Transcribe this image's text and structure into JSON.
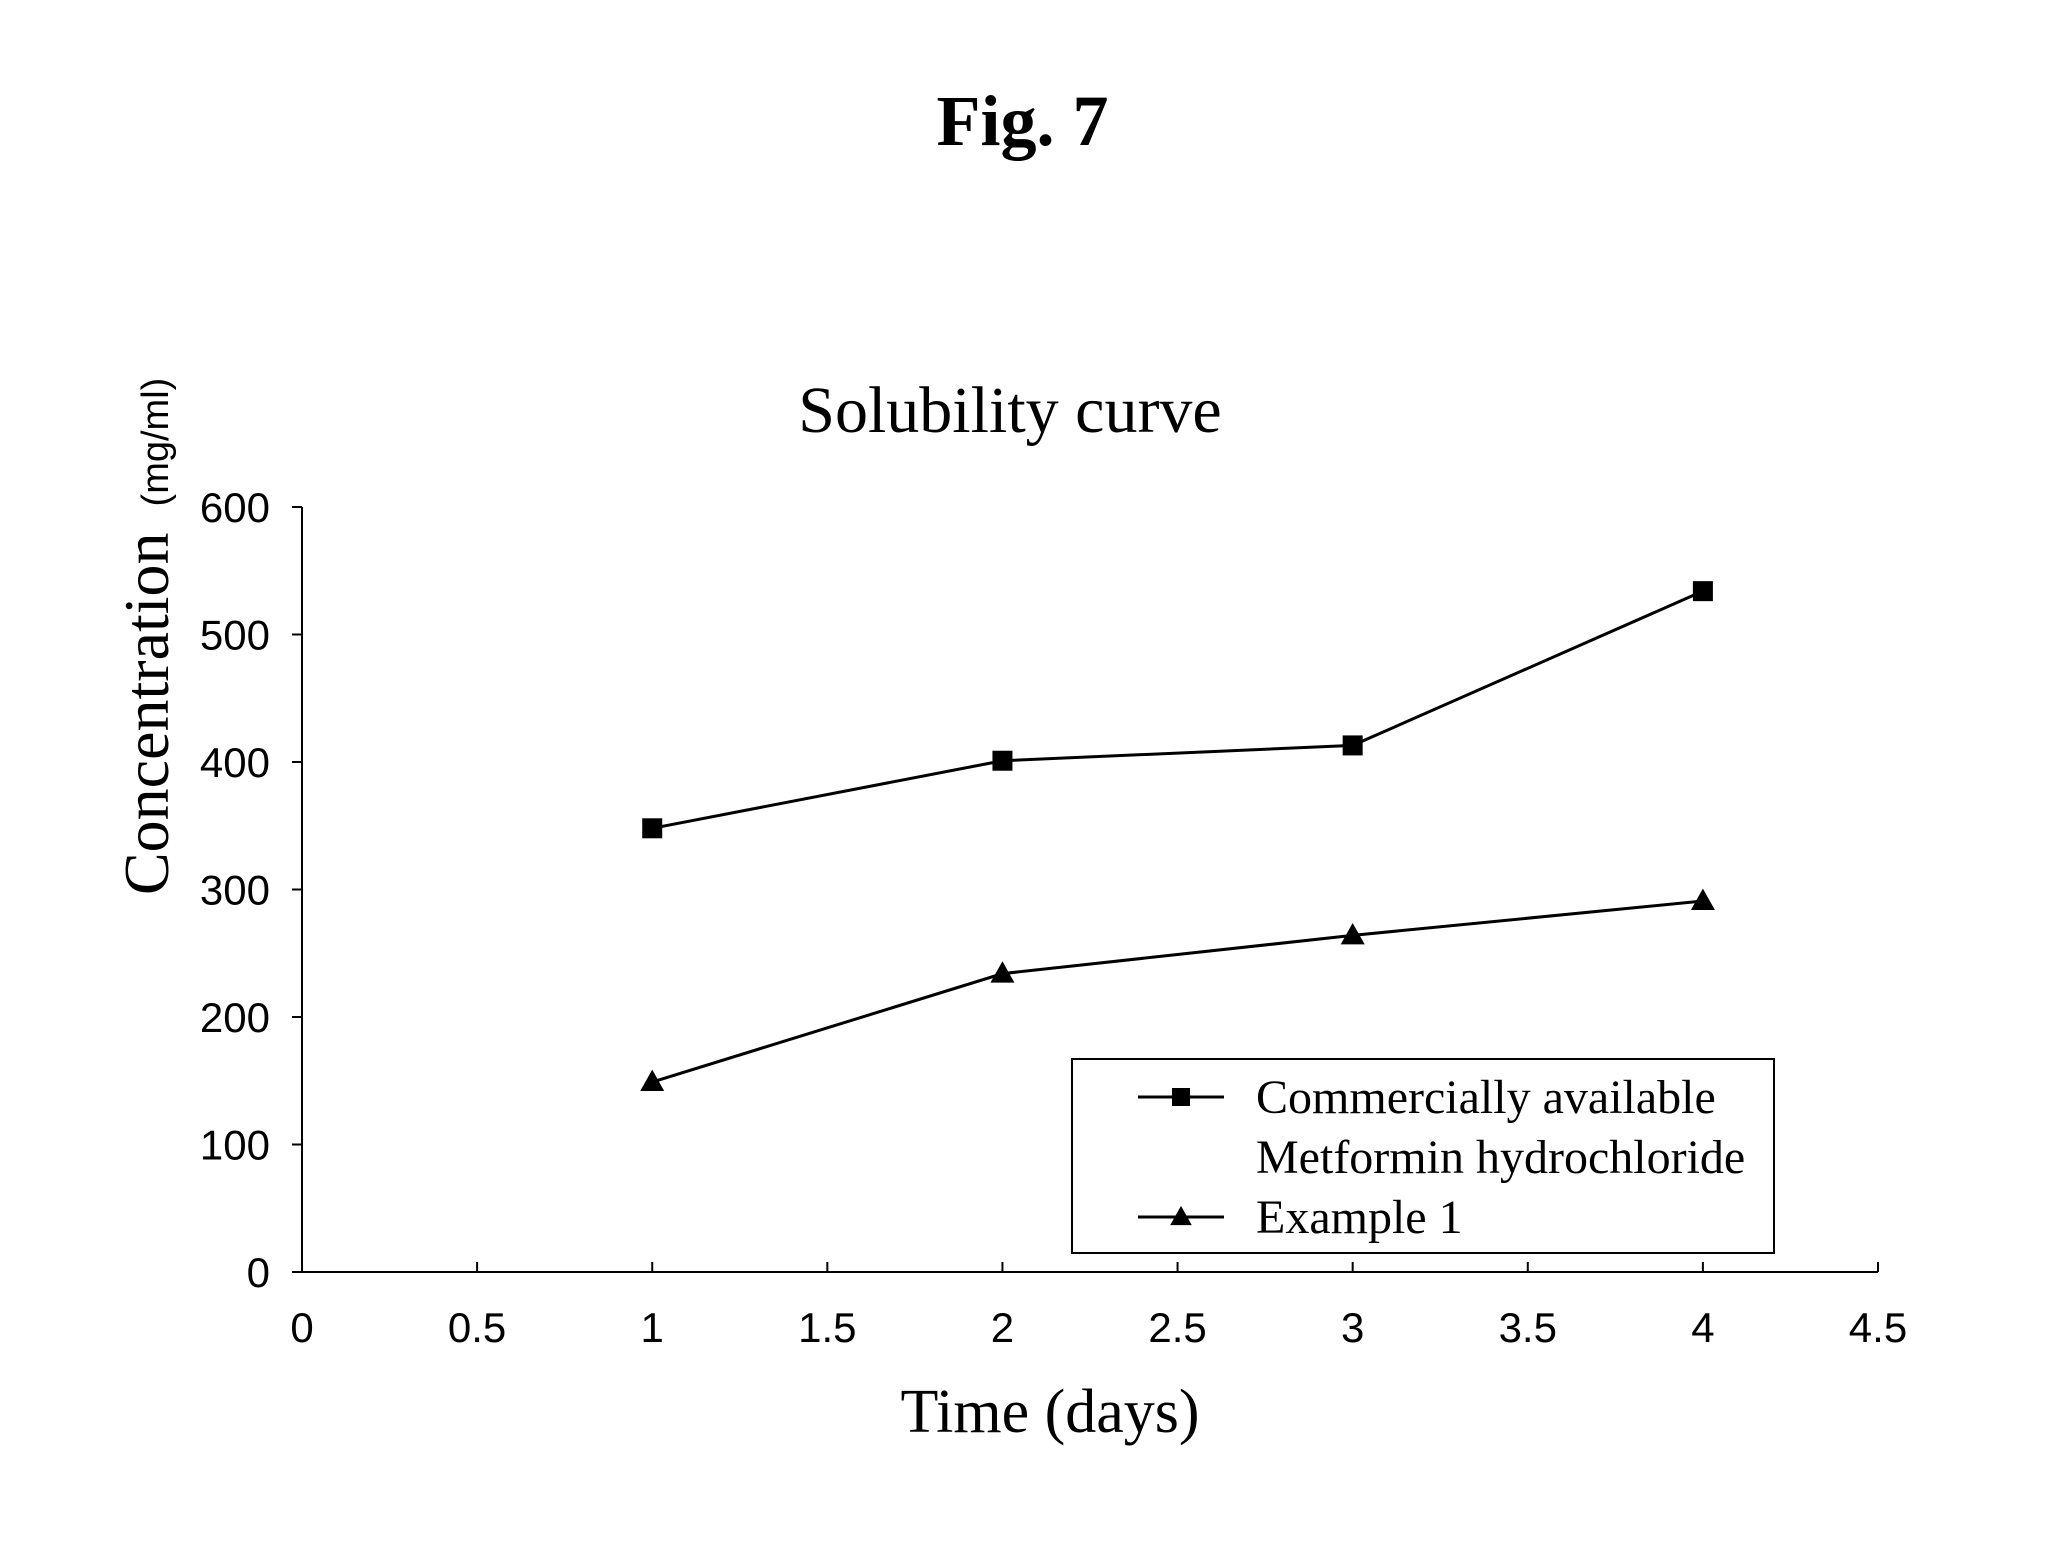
{
  "figure": {
    "label": "Fig. 7"
  },
  "chart_data": {
    "type": "line",
    "title": "Solubility curve",
    "xlabel": "Time (days)",
    "ylabel_main": "Concentration",
    "ylabel_unit": "(mg/ml)",
    "xlim": [
      0,
      4.5
    ],
    "ylim": [
      0,
      600
    ],
    "x_ticks": [
      "0",
      "0.5",
      "1",
      "1.5",
      "2",
      "2.5",
      "3",
      "3.5",
      "4",
      "4.5"
    ],
    "y_ticks": [
      "0",
      "100",
      "200",
      "300",
      "400",
      "500",
      "600"
    ],
    "grid": false,
    "legend_position": "bottom-right",
    "x": [
      1,
      2,
      3,
      4
    ],
    "series": [
      {
        "legend_lines": [
          "Commercially available",
          "Metformin hydrochloride"
        ],
        "marker": "square",
        "values": [
          348,
          401,
          413,
          534
        ]
      },
      {
        "legend_lines": [
          "Example 1"
        ],
        "marker": "triangle",
        "values": [
          149,
          234,
          264,
          291
        ]
      }
    ]
  }
}
